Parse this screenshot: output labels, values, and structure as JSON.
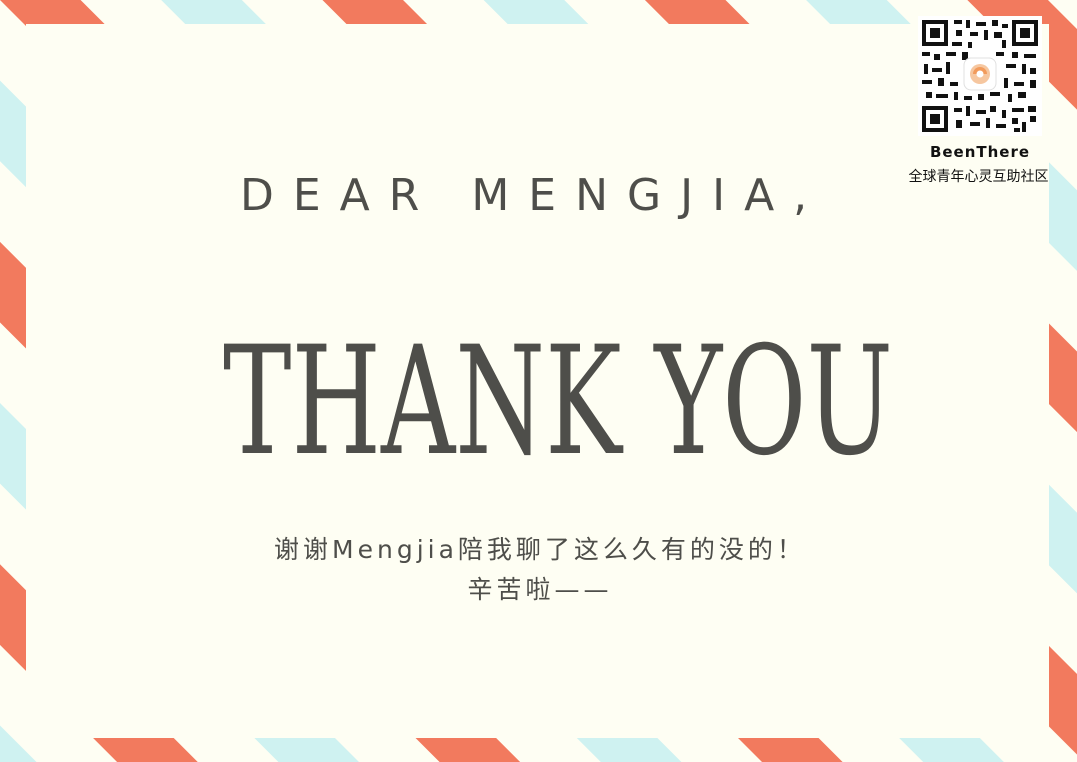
{
  "card": {
    "greeting": "DEAR MENGJIA,",
    "headline": "THANK YOU",
    "message_line1": "谢谢Mengjia陪我聊了这么久有的没的！",
    "message_line2": "辛苦啦——"
  },
  "brand": {
    "name": "BeenThere",
    "tagline": "全球青年心灵互助社区"
  },
  "colors": {
    "stripe_red": "#f27a5e",
    "stripe_blue": "#cff2f1",
    "paper": "#fefef3",
    "text": "#4e4e4a"
  },
  "icons": [
    "qr-code-icon",
    "beenthere-logo-icon"
  ]
}
